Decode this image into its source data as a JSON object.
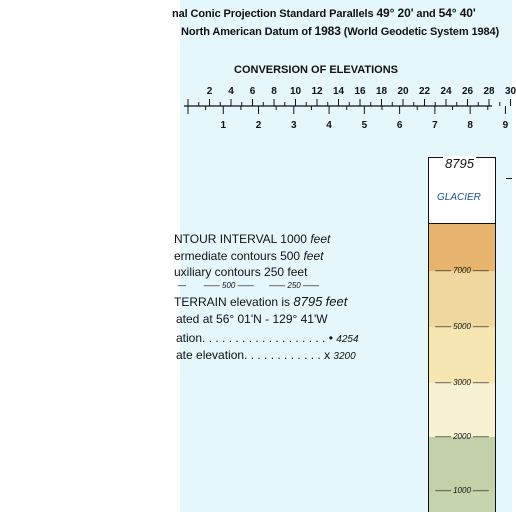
{
  "projection": {
    "line1_prefix": "nal Conic Projection Standard Parallels",
    "line1_p1": "49° 20'",
    "line1_and": "and",
    "line1_p2": "54° 40'",
    "line2_prefix": "North American Datum of",
    "line2_year": "1983",
    "line2_suffix": "(World Geodetic System 1984)"
  },
  "conversion": {
    "title": "CONVERSION OF ELEVATIONS",
    "feet_ticks": [
      "2",
      "4",
      "6",
      "8",
      "10",
      "12",
      "14",
      "16",
      "18",
      "20",
      "22",
      "24",
      "26",
      "28",
      "30"
    ],
    "km_ticks": [
      "1",
      "2",
      "3",
      "4",
      "5",
      "6",
      "7",
      "8",
      "9"
    ]
  },
  "contours": {
    "interval_prefix": "NTOUR INTERVAL",
    "interval_value": "1000",
    "interval_unit": "feet",
    "intermediate_prefix": "ermediate contours",
    "intermediate_value": "500",
    "intermediate_unit": "feet",
    "auxiliary": "uxiliary contours 250 feet",
    "legend_500": "500",
    "legend_250": "250"
  },
  "terrain": {
    "label": "TERRAIN elevation is",
    "value": "8795",
    "unit": "feet",
    "located": "ated at 56° 01'N - 129° 41'W",
    "elev1_label": "ation. . . . . . . . . . . . . . . . . . .",
    "elev1_marker": "•",
    "elev1_value": "4254",
    "elev2_label": "ate elevation. . . . . . . . . . . .",
    "elev2_marker": "x",
    "elev2_value": "3200"
  },
  "tint_legend": {
    "peak": "8795",
    "glacier": "GLACIER",
    "ticks": [
      "7000",
      "5000",
      "3000",
      "2000",
      "1000"
    ],
    "colors": {
      "glacier": "#ffffff",
      "band_top": "#e6b46c",
      "band_7000": "#eed8a0",
      "band_5000": "#f6e6b2",
      "band_3000": "#f7f3d2",
      "band_2000": "#c3cfa8",
      "band_1000": "#c6d4ae",
      "glacier_text": "#1a4fa0"
    }
  }
}
